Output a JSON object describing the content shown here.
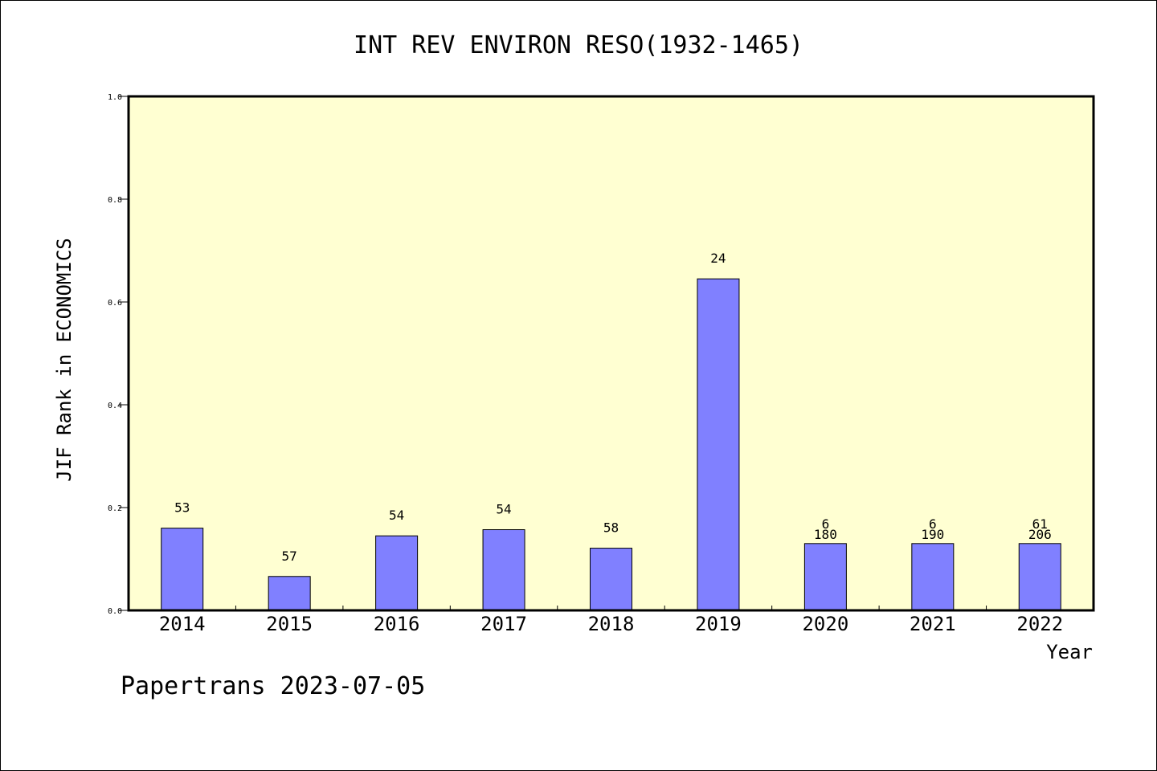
{
  "chart_data": {
    "type": "bar",
    "title": "INT REV ENVIRON RESO(1932-1465)",
    "ylabel": "JIF Rank in ECONOMICS",
    "xlabel": "Year",
    "ylim": [
      0,
      1.0
    ],
    "yticks": [
      "0.0",
      "0.2",
      "0.4",
      "0.6",
      "0.8",
      "1.0"
    ],
    "grid": false,
    "colors": {
      "plot_bg": "#ffffd2",
      "bar_fill": "#8080ff",
      "bar_stroke": "#000000"
    },
    "categories": [
      "2014",
      "2015",
      "2016",
      "2017",
      "2018",
      "2019",
      "2020",
      "2021",
      "2022"
    ],
    "values": [
      0.16,
      0.066,
      0.145,
      0.157,
      0.121,
      0.645,
      0.13,
      0.13,
      0.13
    ],
    "labels": [
      [
        "53"
      ],
      [
        "57"
      ],
      [
        "54"
      ],
      [
        "54"
      ],
      [
        "58"
      ],
      [
        "24"
      ],
      [
        "6",
        "180"
      ],
      [
        "6",
        "190"
      ],
      [
        "61",
        "206"
      ]
    ]
  },
  "footer": "Papertrans 2023-07-05"
}
